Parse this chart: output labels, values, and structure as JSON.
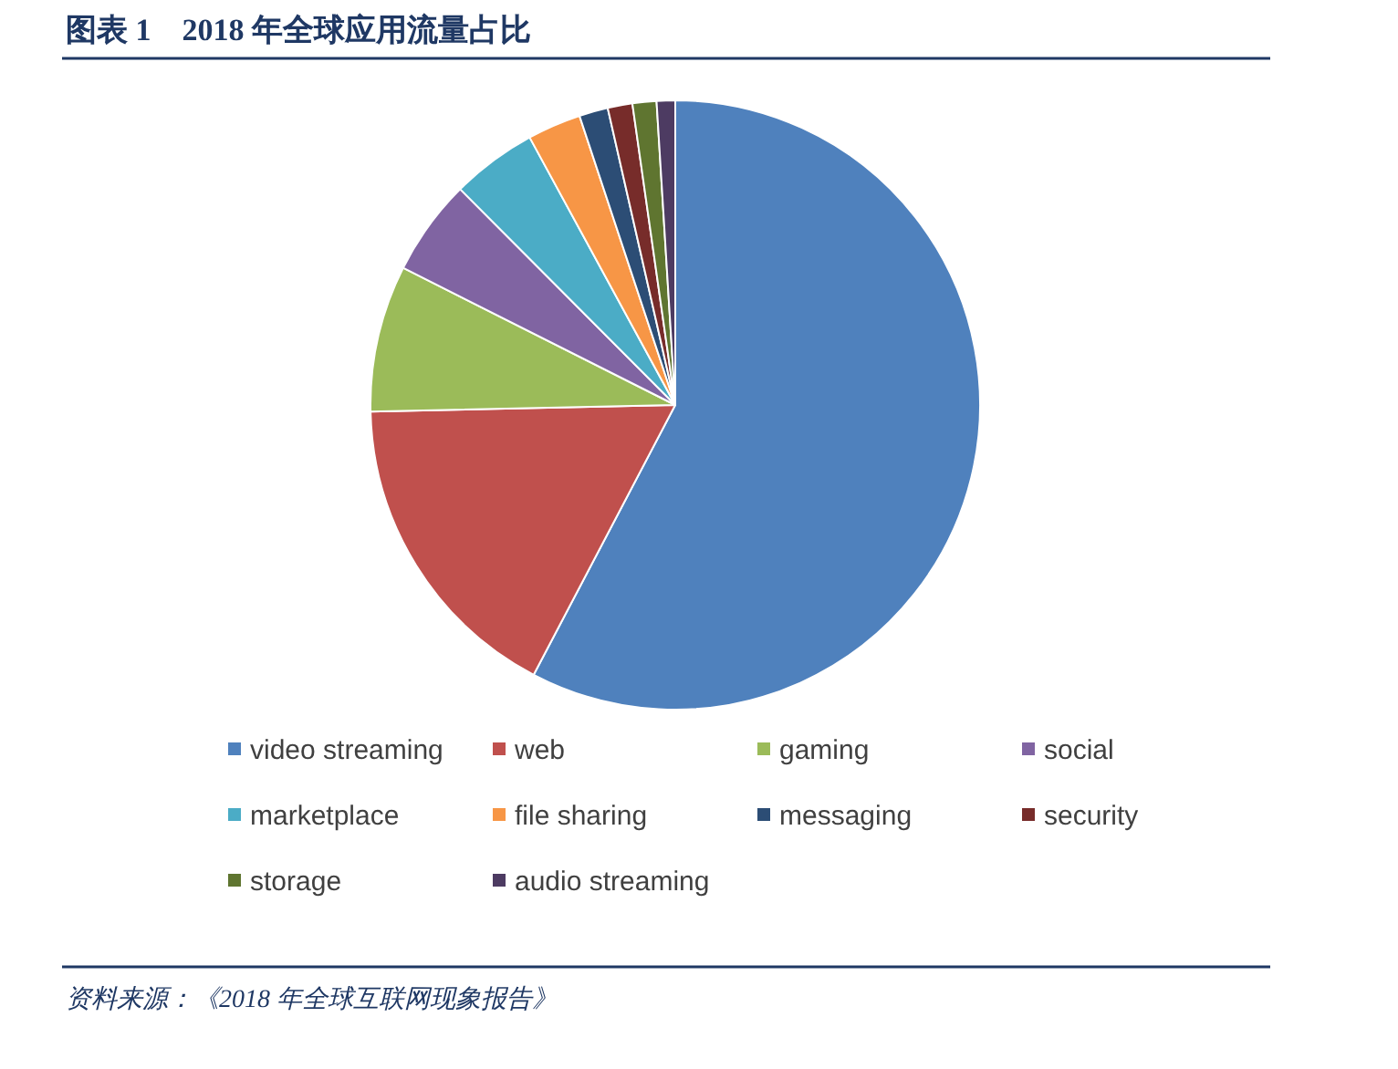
{
  "chart_data": {
    "type": "pie",
    "title": "图表 1　2018 年全球应用流量占比",
    "categories": [
      "video streaming",
      "web",
      "gaming",
      "social",
      "marketplace",
      "file sharing",
      "messaging",
      "security",
      "storage",
      "audio streaming"
    ],
    "values": [
      57.69,
      16.96,
      7.78,
      5.1,
      4.54,
      2.84,
      1.53,
      1.31,
      1.27,
      0.98
    ],
    "colors": [
      "#4f81bd",
      "#c0504d",
      "#9bbb59",
      "#8064a2",
      "#4bacc6",
      "#f79646",
      "#2c4d75",
      "#772c2a",
      "#5f7530",
      "#4d3b62"
    ],
    "legend": "bottom",
    "annotations": [
      "资料来源：《2018 年全球互联网现象报告》"
    ]
  }
}
